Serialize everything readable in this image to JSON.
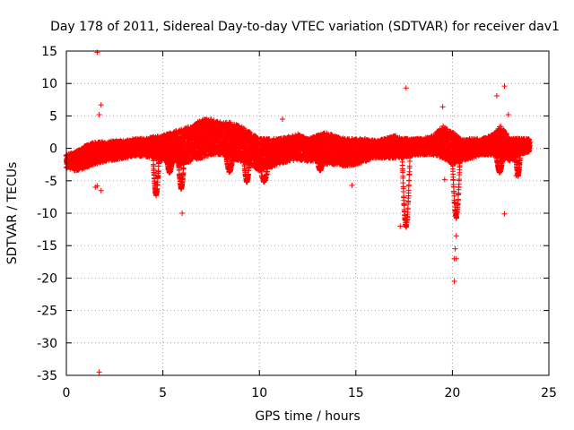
{
  "chart_data": {
    "type": "scatter",
    "title": "Day 178 of 2011, Sidereal Day-to-day VTEC variation (SDTVAR) for receiver dav1",
    "xlabel": "GPS time / hours",
    "ylabel": "SDTVAR / TECUs",
    "xlim": [
      0,
      25
    ],
    "ylim": [
      -35,
      15
    ],
    "xticks": [
      0,
      5,
      10,
      15,
      20,
      25
    ],
    "yticks": [
      15,
      10,
      5,
      0,
      -5,
      -10,
      -15,
      -20,
      -25,
      -30,
      -35
    ],
    "grid": true,
    "marker": "+",
    "color": "#ff0000",
    "series": [
      {
        "name": "dav1",
        "band_profile": {
          "x": [
            0.0,
            0.5,
            1.0,
            1.5,
            2.0,
            2.5,
            3.0,
            3.5,
            4.0,
            4.5,
            5.0,
            5.5,
            6.0,
            6.5,
            7.0,
            7.5,
            8.0,
            8.5,
            9.0,
            9.5,
            10.0,
            10.5,
            11.0,
            11.5,
            12.0,
            12.5,
            13.0,
            13.5,
            14.0,
            14.5,
            15.0,
            15.5,
            16.0,
            16.5,
            17.0,
            17.5,
            18.0,
            18.5,
            19.0,
            19.5,
            20.0,
            20.5,
            21.0,
            21.5,
            22.0,
            22.5,
            23.0,
            23.5,
            24.0
          ],
          "lower": [
            -3.0,
            -3.5,
            -3.0,
            -2.5,
            -2.0,
            -1.8,
            -1.5,
            -1.2,
            -1.2,
            -1.5,
            -2.0,
            -2.0,
            -2.5,
            -2.0,
            -1.5,
            -1.0,
            -1.0,
            -1.5,
            -2.0,
            -2.5,
            -3.5,
            -3.0,
            -2.5,
            -2.0,
            -1.8,
            -2.0,
            -2.0,
            -2.5,
            -2.5,
            -2.8,
            -2.5,
            -2.0,
            -1.5,
            -1.5,
            -1.5,
            -1.5,
            -1.0,
            -1.0,
            -1.0,
            -1.5,
            -2.5,
            -2.0,
            -1.5,
            -1.0,
            -1.0,
            -1.5,
            -2.0,
            -1.0,
            -0.5
          ],
          "upper": [
            -1.0,
            -0.5,
            0.5,
            1.0,
            1.0,
            1.2,
            1.2,
            1.5,
            1.5,
            1.8,
            2.0,
            2.5,
            3.0,
            3.5,
            4.5,
            4.5,
            4.0,
            4.0,
            3.5,
            2.5,
            1.5,
            1.5,
            1.5,
            1.8,
            2.2,
            1.5,
            2.0,
            2.5,
            1.8,
            1.5,
            1.5,
            1.5,
            1.2,
            1.5,
            2.0,
            1.5,
            1.5,
            1.5,
            2.0,
            3.5,
            2.5,
            1.5,
            1.5,
            1.5,
            2.0,
            3.5,
            1.5,
            1.5,
            1.5
          ]
        },
        "dips": [
          {
            "x": [
              4.5,
              4.8
            ],
            "min": -7.0
          },
          {
            "x": [
              5.2,
              5.5
            ],
            "min": -3.5
          },
          {
            "x": [
              5.8,
              6.1
            ],
            "min": -6.0
          },
          {
            "x": [
              8.3,
              8.6
            ],
            "min": -3.5
          },
          {
            "x": [
              9.2,
              9.5
            ],
            "min": -5.0
          },
          {
            "x": [
              10.0,
              10.5
            ],
            "min": -5.0
          },
          {
            "x": [
              13.0,
              13.3
            ],
            "min": -3.2
          },
          {
            "x": [
              17.4,
              17.8
            ],
            "min": -12.0
          },
          {
            "x": [
              20.0,
              20.4
            ],
            "min": -10.5
          },
          {
            "x": [
              22.3,
              22.6
            ],
            "min": -3.5
          },
          {
            "x": [
              23.3,
              23.5
            ],
            "min": -4.0
          }
        ],
        "outliers": {
          "x": [
            1.6,
            1.7,
            1.8,
            1.5,
            1.6,
            1.8,
            1.7,
            6.0,
            11.2,
            14.8,
            17.3,
            17.6,
            19.5,
            19.6,
            20.1,
            20.2,
            20.1,
            20.15,
            20.2,
            22.3,
            22.7,
            22.9,
            22.7,
            23.3
          ],
          "y": [
            14.8,
            5.2,
            6.7,
            -6.0,
            -5.8,
            -6.5,
            -34.5,
            -10.0,
            4.5,
            -5.7,
            -12.0,
            9.3,
            6.4,
            -4.8,
            -17.0,
            -13.5,
            -20.5,
            -15.5,
            -17.0,
            8.1,
            9.6,
            5.2,
            -10.1,
            -4.2
          ]
        }
      }
    ]
  }
}
